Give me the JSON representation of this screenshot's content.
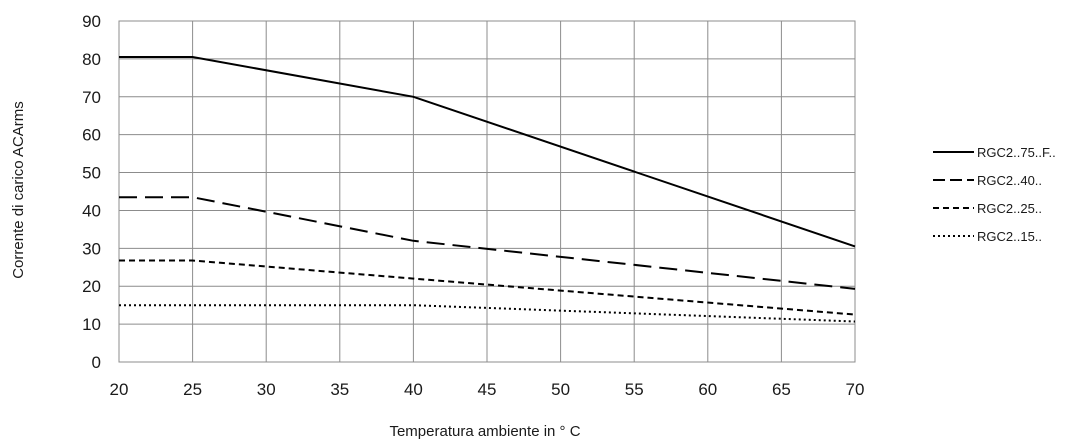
{
  "chart_data": {
    "type": "line",
    "xlabel": "Temperatura ambiente in ° C",
    "ylabel": "Corrente di carico ACArms",
    "xticks": [
      20,
      25,
      30,
      35,
      40,
      45,
      50,
      55,
      60,
      65,
      70
    ],
    "xlim": [
      20,
      70
    ],
    "ylim": [
      0,
      90
    ],
    "yticks": [
      0,
      10,
      20,
      30,
      40,
      50,
      60,
      70,
      80,
      90
    ],
    "grid": true,
    "legend_position": "right",
    "series": [
      {
        "name": "RGC2..75..F..",
        "style": "solid",
        "x": [
          20,
          25,
          40,
          70
        ],
        "y": [
          80.5,
          80.5,
          70,
          30.5
        ]
      },
      {
        "name": "RGC2..40..",
        "style": "long-dash",
        "x": [
          20,
          25,
          40,
          70
        ],
        "y": [
          43.5,
          43.5,
          32,
          19.3
        ]
      },
      {
        "name": "RGC2..25..",
        "style": "short-dash",
        "x": [
          20,
          25,
          40,
          70
        ],
        "y": [
          26.8,
          26.8,
          22,
          12.5
        ]
      },
      {
        "name": "RGC2..15..",
        "style": "dotted",
        "x": [
          20,
          25,
          40,
          70
        ],
        "y": [
          15,
          15,
          15,
          10.7
        ]
      }
    ],
    "colors": {
      "line": "#000000",
      "grid": "#8c8c8c",
      "axis": "#1a1a1a"
    }
  }
}
